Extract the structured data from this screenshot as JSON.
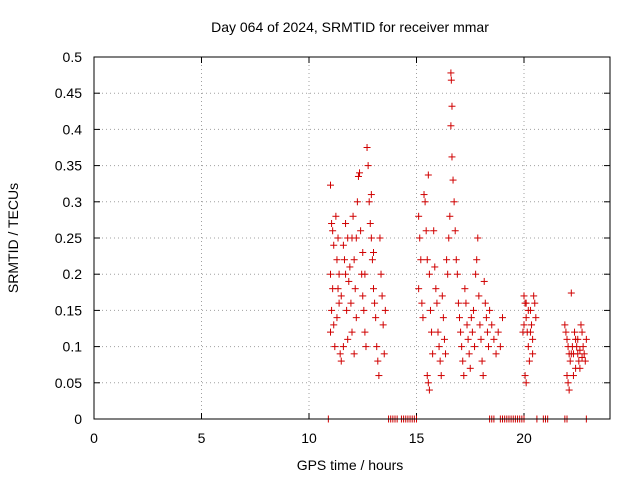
{
  "chart_data": {
    "type": "scatter",
    "title": "Day 064 of 2024, SRMTID for receiver mmar",
    "xlabel": "GPS time / hours",
    "ylabel": "SRMTID / TECUs",
    "xlim": [
      0,
      24
    ],
    "ylim": [
      0,
      0.5
    ],
    "xticks": [
      "0",
      "5",
      "10",
      "15",
      "20"
    ],
    "xtick_values": [
      0,
      5,
      10,
      15,
      20
    ],
    "yticks": [
      "0",
      "0.05",
      "0.1",
      "0.15",
      "0.2",
      "0.25",
      "0.3",
      "0.35",
      "0.4",
      "0.45",
      "0.5"
    ],
    "ytick_values": [
      0,
      0.05,
      0.1,
      0.15,
      0.2,
      0.25,
      0.3,
      0.35,
      0.4,
      0.45,
      0.5
    ],
    "grid": true,
    "marker": "+",
    "color": "#d00000",
    "series": [
      {
        "name": "",
        "points": [
          [
            11.0,
            0.323
          ],
          [
            11.05,
            0.27
          ],
          [
            11.1,
            0.26
          ],
          [
            11.15,
            0.24
          ],
          [
            11.0,
            0.2
          ],
          [
            11.1,
            0.18
          ],
          [
            11.05,
            0.15
          ],
          [
            11.0,
            0.12
          ],
          [
            11.2,
            0.1
          ],
          [
            11.15,
            0.13
          ],
          [
            11.3,
            0.22
          ],
          [
            11.35,
            0.18
          ],
          [
            11.4,
            0.16
          ],
          [
            11.3,
            0.14
          ],
          [
            11.45,
            0.09
          ],
          [
            11.5,
            0.08
          ],
          [
            11.4,
            0.2
          ],
          [
            11.35,
            0.25
          ],
          [
            11.25,
            0.28
          ],
          [
            11.5,
            0.17
          ],
          [
            11.6,
            0.24
          ],
          [
            11.65,
            0.22
          ],
          [
            11.7,
            0.2
          ],
          [
            11.75,
            0.15
          ],
          [
            11.8,
            0.11
          ],
          [
            11.6,
            0.1
          ],
          [
            11.7,
            0.27
          ],
          [
            11.85,
            0.19
          ],
          [
            11.9,
            0.21
          ],
          [
            11.95,
            0.16
          ],
          [
            12.0,
            0.25
          ],
          [
            12.05,
            0.28
          ],
          [
            12.1,
            0.22
          ],
          [
            12.15,
            0.18
          ],
          [
            12.2,
            0.14
          ],
          [
            12.0,
            0.12
          ],
          [
            12.1,
            0.09
          ],
          [
            12.25,
            0.3
          ],
          [
            12.3,
            0.335
          ],
          [
            12.35,
            0.34
          ],
          [
            12.4,
            0.26
          ],
          [
            12.45,
            0.2
          ],
          [
            12.5,
            0.17
          ],
          [
            12.55,
            0.15
          ],
          [
            12.6,
            0.12
          ],
          [
            12.65,
            0.1
          ],
          [
            12.7,
            0.375
          ],
          [
            12.75,
            0.35
          ],
          [
            12.8,
            0.3
          ],
          [
            12.85,
            0.27
          ],
          [
            12.9,
            0.25
          ],
          [
            12.95,
            0.22
          ],
          [
            13.0,
            0.18
          ],
          [
            13.05,
            0.16
          ],
          [
            13.1,
            0.14
          ],
          [
            13.15,
            0.1
          ],
          [
            13.2,
            0.08
          ],
          [
            13.25,
            0.06
          ],
          [
            13.3,
            0.25
          ],
          [
            13.35,
            0.2
          ],
          [
            13.4,
            0.17
          ],
          [
            13.45,
            0.13
          ],
          [
            13.5,
            0.09
          ],
          [
            13.55,
            0.15
          ],
          [
            12.5,
            0.23
          ],
          [
            12.2,
            0.25
          ],
          [
            11.8,
            0.25
          ],
          [
            12.9,
            0.31
          ],
          [
            13.0,
            0.23
          ],
          [
            12.6,
            0.2
          ],
          [
            15.1,
            0.28
          ],
          [
            15.15,
            0.25
          ],
          [
            15.2,
            0.22
          ],
          [
            15.1,
            0.18
          ],
          [
            15.25,
            0.16
          ],
          [
            15.3,
            0.14
          ],
          [
            15.35,
            0.31
          ],
          [
            15.4,
            0.3
          ],
          [
            15.45,
            0.26
          ],
          [
            15.5,
            0.22
          ],
          [
            15.55,
            0.337
          ],
          [
            15.6,
            0.2
          ],
          [
            15.65,
            0.15
          ],
          [
            15.7,
            0.12
          ],
          [
            15.75,
            0.09
          ],
          [
            15.5,
            0.06
          ],
          [
            15.55,
            0.05
          ],
          [
            15.6,
            0.04
          ],
          [
            15.8,
            0.26
          ],
          [
            15.85,
            0.21
          ],
          [
            15.9,
            0.18
          ],
          [
            15.95,
            0.16
          ],
          [
            16.0,
            0.12
          ],
          [
            16.05,
            0.1
          ],
          [
            16.1,
            0.08
          ],
          [
            16.15,
            0.06
          ],
          [
            16.2,
            0.17
          ],
          [
            16.25,
            0.14
          ],
          [
            16.3,
            0.11
          ],
          [
            16.35,
            0.09
          ],
          [
            16.4,
            0.22
          ],
          [
            16.45,
            0.2
          ],
          [
            16.5,
            0.25
          ],
          [
            16.55,
            0.28
          ],
          [
            16.6,
            0.478
          ],
          [
            16.62,
            0.468
          ],
          [
            16.65,
            0.432
          ],
          [
            16.6,
            0.405
          ],
          [
            16.65,
            0.362
          ],
          [
            16.7,
            0.33
          ],
          [
            16.75,
            0.3
          ],
          [
            16.8,
            0.26
          ],
          [
            16.85,
            0.22
          ],
          [
            16.9,
            0.2
          ],
          [
            16.95,
            0.16
          ],
          [
            17.0,
            0.14
          ],
          [
            17.05,
            0.12
          ],
          [
            17.1,
            0.1
          ],
          [
            17.15,
            0.08
          ],
          [
            17.2,
            0.06
          ],
          [
            17.25,
            0.18
          ],
          [
            17.3,
            0.16
          ],
          [
            17.35,
            0.13
          ],
          [
            17.4,
            0.11
          ],
          [
            17.45,
            0.09
          ],
          [
            17.5,
            0.07
          ],
          [
            17.55,
            0.14
          ],
          [
            17.6,
            0.12
          ],
          [
            17.65,
            0.15
          ],
          [
            17.7,
            0.1
          ],
          [
            17.75,
            0.2
          ],
          [
            17.8,
            0.22
          ],
          [
            17.85,
            0.25
          ],
          [
            17.9,
            0.17
          ],
          [
            17.95,
            0.13
          ],
          [
            18.0,
            0.11
          ],
          [
            18.05,
            0.08
          ],
          [
            18.1,
            0.06
          ],
          [
            18.15,
            0.19
          ],
          [
            18.2,
            0.16
          ],
          [
            18.25,
            0.14
          ],
          [
            18.3,
            0.12
          ],
          [
            18.35,
            0.1
          ],
          [
            18.4,
            0.15
          ],
          [
            18.5,
            0.13
          ],
          [
            18.6,
            0.11
          ],
          [
            18.7,
            0.09
          ],
          [
            18.8,
            0.12
          ],
          [
            18.9,
            0.1
          ],
          [
            19.0,
            0.14
          ],
          [
            20.0,
            0.17
          ],
          [
            20.05,
            0.16
          ],
          [
            20.1,
            0.14
          ],
          [
            20.15,
            0.12
          ],
          [
            20.2,
            0.1
          ],
          [
            20.25,
            0.08
          ],
          [
            20.05,
            0.06
          ],
          [
            20.1,
            0.05
          ],
          [
            20.3,
            0.15
          ],
          [
            20.35,
            0.13
          ],
          [
            20.4,
            0.11
          ],
          [
            20.45,
            0.17
          ],
          [
            20.5,
            0.16
          ],
          [
            20.55,
            0.14
          ],
          [
            20.4,
            0.09
          ],
          [
            20.3,
            0.12
          ],
          [
            20.2,
            0.15
          ],
          [
            20.1,
            0.16
          ],
          [
            20.0,
            0.13
          ],
          [
            19.95,
            0.12
          ],
          [
            21.9,
            0.13
          ],
          [
            21.95,
            0.12
          ],
          [
            22.0,
            0.11
          ],
          [
            22.05,
            0.1
          ],
          [
            22.1,
            0.09
          ],
          [
            22.15,
            0.08
          ],
          [
            22.2,
            0.174
          ],
          [
            22.25,
            0.1
          ],
          [
            22.3,
            0.09
          ],
          [
            22.0,
            0.06
          ],
          [
            22.05,
            0.05
          ],
          [
            22.1,
            0.04
          ],
          [
            22.35,
            0.12
          ],
          [
            22.4,
            0.11
          ],
          [
            22.45,
            0.1
          ],
          [
            22.5,
            0.09
          ],
          [
            22.55,
            0.08
          ],
          [
            22.6,
            0.07
          ],
          [
            22.65,
            0.13
          ],
          [
            22.7,
            0.12
          ],
          [
            22.75,
            0.1
          ],
          [
            22.8,
            0.09
          ],
          [
            22.85,
            0.08
          ],
          [
            22.9,
            0.11
          ],
          [
            22.3,
            0.06
          ],
          [
            22.4,
            0.07
          ],
          [
            22.2,
            0.09
          ],
          [
            22.6,
            0.095
          ],
          [
            22.7,
            0.085
          ],
          [
            22.5,
            0.11
          ]
        ],
        "zero_x": [
          10.9,
          13.7,
          13.8,
          13.9,
          14.0,
          14.1,
          14.3,
          14.4,
          14.5,
          14.6,
          14.7,
          14.8,
          14.9,
          15.0,
          18.4,
          18.5,
          18.6,
          18.9,
          19.0,
          19.1,
          19.2,
          19.3,
          19.4,
          19.5,
          19.6,
          19.7,
          19.8,
          19.9,
          20.0,
          20.6,
          20.9,
          21.0,
          21.1,
          21.9,
          22.0,
          22.9
        ]
      }
    ]
  }
}
